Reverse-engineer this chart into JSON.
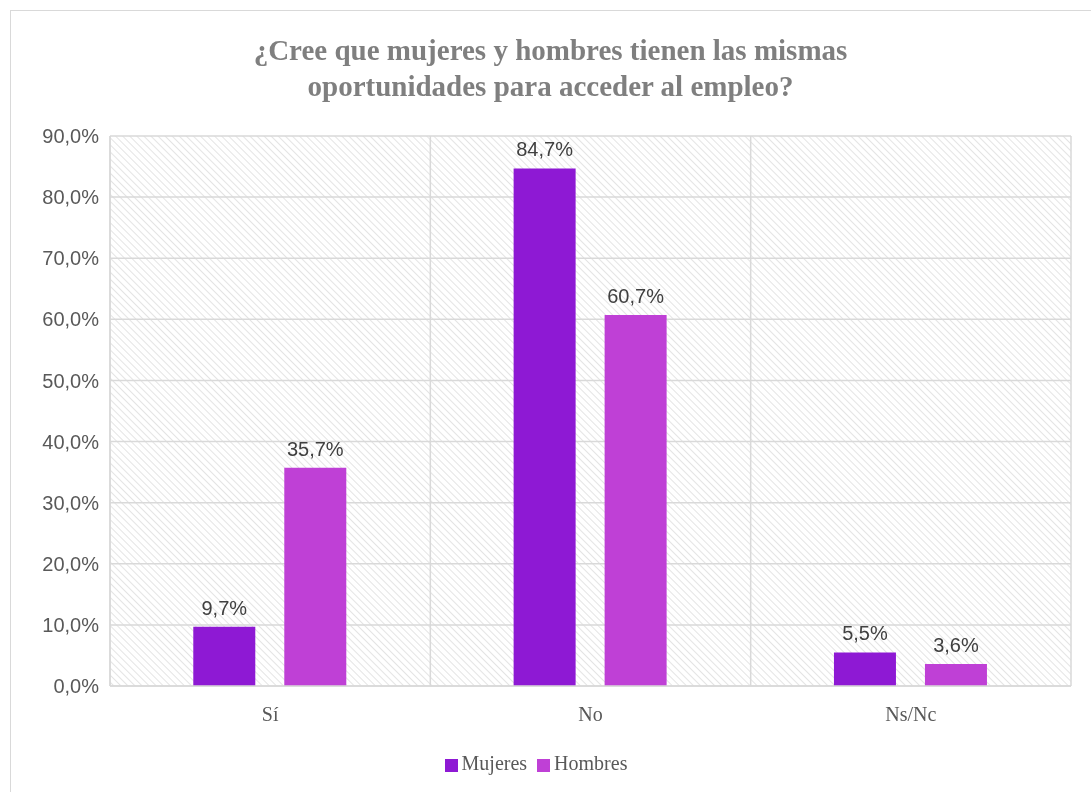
{
  "chart_data": {
    "type": "bar",
    "title": "¿Cree que mujeres y hombres tienen las mismas oportunidades para acceder al empleo?",
    "categories": [
      "Sí",
      "No",
      "Ns/Nc"
    ],
    "series": [
      {
        "name": "Mujeres",
        "color": "#8e19d4",
        "values": [
          9.7,
          84.7,
          5.5
        ],
        "value_labels": [
          "9,7%",
          "84,7%",
          "5,5%"
        ]
      },
      {
        "name": "Hombres",
        "color": "#bf40d6",
        "values": [
          35.7,
          60.7,
          3.6
        ],
        "value_labels": [
          "35,7%",
          "60,7%",
          "3,6%"
        ]
      }
    ],
    "ylim": [
      0,
      90
    ],
    "yticks": [
      {
        "value": 0,
        "label": "0,0%"
      },
      {
        "value": 10,
        "label": "10,0%"
      },
      {
        "value": 20,
        "label": "20,0%"
      },
      {
        "value": 30,
        "label": "30,0%"
      },
      {
        "value": 40,
        "label": "40,0%"
      },
      {
        "value": 50,
        "label": "50,0%"
      },
      {
        "value": 60,
        "label": "60,0%"
      },
      {
        "value": 70,
        "label": "70,0%"
      },
      {
        "value": 80,
        "label": "80,0%"
      },
      {
        "value": 90,
        "label": "90,0%"
      }
    ],
    "grid": true,
    "legend": "bottom"
  }
}
